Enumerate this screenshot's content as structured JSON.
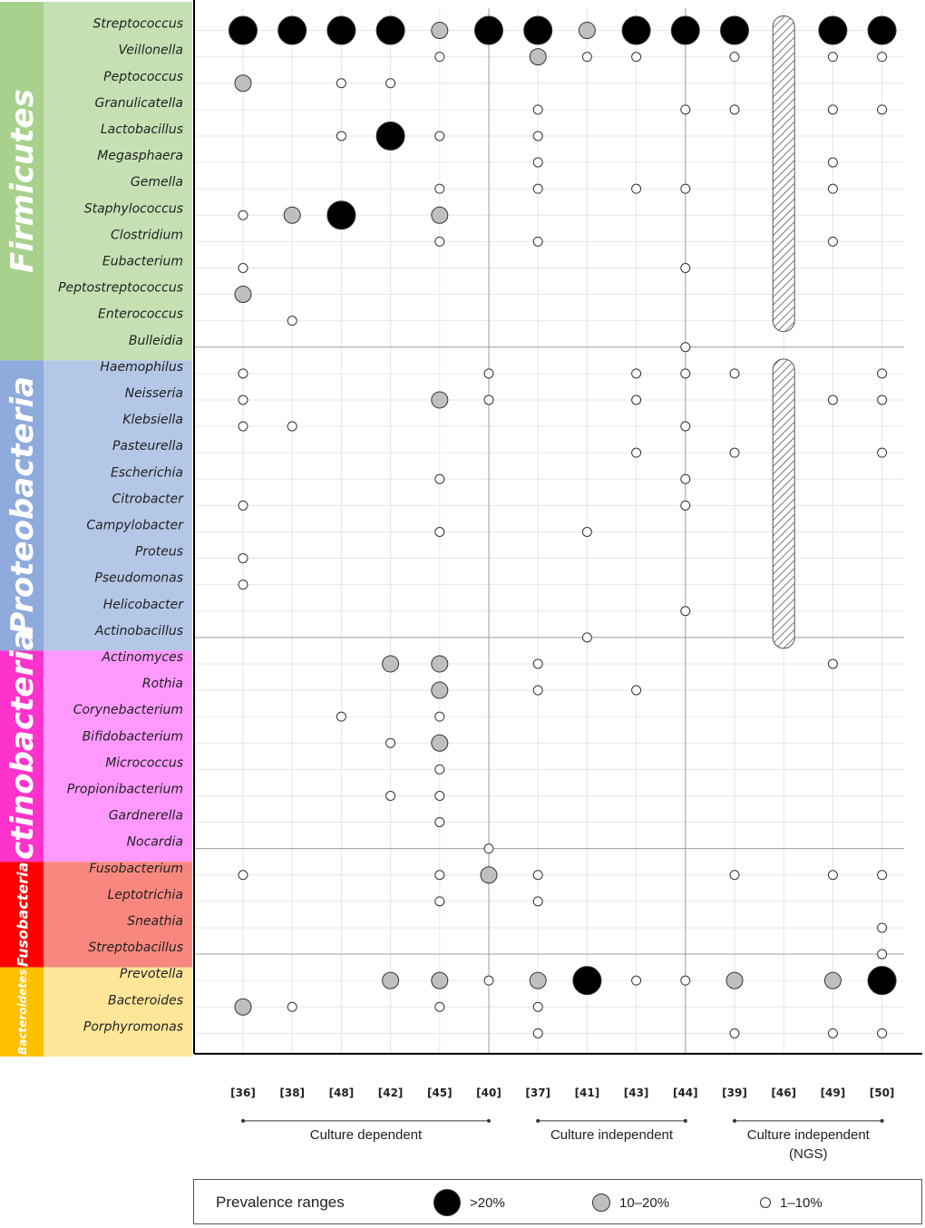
{
  "chart_data": {
    "type": "scatter",
    "title": "",
    "references": [
      "[36]",
      "[38]",
      "[48]",
      "[42]",
      "[45]",
      "[40]",
      "[37]",
      "[41]",
      "[43]",
      "[44]",
      "[39]",
      "[46]",
      "[49]",
      "[50]"
    ],
    "groups": [
      {
        "label": "Culture dependent",
        "from": 0,
        "to": 5
      },
      {
        "label": "Culture independent",
        "from": 6,
        "to": 9
      },
      {
        "label": "Culture independent\n(NGS)",
        "from": 10,
        "to": 13
      }
    ],
    "phyla": [
      {
        "name": "Firmicutes",
        "fill": "#c5e1b4",
        "band": "#a9d18e",
        "text_color": "#ffffff",
        "first": 0,
        "count": 13
      },
      {
        "name": "Proteobacteria",
        "fill": "#b4c7e7",
        "band": "#8faadc",
        "text_color": "#ffffff",
        "first": 13,
        "count": 11
      },
      {
        "name": "Actinobacteria",
        "fill": "#ff99ff",
        "band": "#ff33cc",
        "text_color": "#ffffff",
        "first": 24,
        "count": 8
      },
      {
        "name": "Fusobacteria",
        "fill": "#f8887f",
        "band": "#ff0000",
        "text_color": "#ffffff",
        "first": 32,
        "count": 4
      },
      {
        "name": "Bacteroidetes",
        "fill": "#ffe699",
        "band": "#ffc000",
        "text_color": "#ffffff",
        "first": 36,
        "count": 3
      }
    ],
    "genera": [
      "Streptococcus",
      "Veillonella",
      "Peptococcus",
      "Granulicatella",
      "Lactobacillus",
      "Megasphaera",
      "Gemella",
      "Staphylococcus",
      "Clostridium",
      "Eubacterium",
      "Peptostreptococcus",
      "Enterococcus",
      "Bulleidia",
      "Haemophilus",
      "Neisseria",
      "Klebsiella",
      "Pasteurella",
      "Escherichia",
      "Citrobacter",
      "Campylobacter",
      "Proteus",
      "Pseudomonas",
      "Helicobacter",
      "Actinobacillus",
      "Actinomyces",
      "Rothia",
      "Corynebacterium",
      "Bifidobacterium",
      "Micrococcus",
      "Propionibacterium",
      "Gardnerella",
      "Nocardia",
      "Fusobacterium",
      "Leptotrichia",
      "Sneathia",
      "Streptobacillus",
      "Prevotella",
      "Bacteroides",
      "Porphyromonas"
    ],
    "prevalence_levels": {
      "high": ">20%",
      "mid": "10–20%",
      "low": "1–10%"
    },
    "points": [
      {
        "genus": "Streptococcus",
        "ref": "[36]",
        "level": "high"
      },
      {
        "genus": "Streptococcus",
        "ref": "[38]",
        "level": "high"
      },
      {
        "genus": "Streptococcus",
        "ref": "[48]",
        "level": "high"
      },
      {
        "genus": "Streptococcus",
        "ref": "[42]",
        "level": "high"
      },
      {
        "genus": "Streptococcus",
        "ref": "[45]",
        "level": "mid"
      },
      {
        "genus": "Streptococcus",
        "ref": "[40]",
        "level": "high"
      },
      {
        "genus": "Streptococcus",
        "ref": "[37]",
        "level": "high"
      },
      {
        "genus": "Streptococcus",
        "ref": "[41]",
        "level": "mid"
      },
      {
        "genus": "Streptococcus",
        "ref": "[43]",
        "level": "high"
      },
      {
        "genus": "Streptococcus",
        "ref": "[44]",
        "level": "high"
      },
      {
        "genus": "Streptococcus",
        "ref": "[39]",
        "level": "high"
      },
      {
        "genus": "Streptococcus",
        "ref": "[49]",
        "level": "high"
      },
      {
        "genus": "Streptococcus",
        "ref": "[50]",
        "level": "high"
      },
      {
        "genus": "Veillonella",
        "ref": "[45]",
        "level": "low"
      },
      {
        "genus": "Veillonella",
        "ref": "[37]",
        "level": "mid"
      },
      {
        "genus": "Veillonella",
        "ref": "[41]",
        "level": "low"
      },
      {
        "genus": "Veillonella",
        "ref": "[43]",
        "level": "low"
      },
      {
        "genus": "Veillonella",
        "ref": "[39]",
        "level": "low"
      },
      {
        "genus": "Veillonella",
        "ref": "[49]",
        "level": "low"
      },
      {
        "genus": "Veillonella",
        "ref": "[50]",
        "level": "low"
      },
      {
        "genus": "Peptococcus",
        "ref": "[36]",
        "level": "mid"
      },
      {
        "genus": "Peptococcus",
        "ref": "[48]",
        "level": "low"
      },
      {
        "genus": "Peptococcus",
        "ref": "[42]",
        "level": "low"
      },
      {
        "genus": "Granulicatella",
        "ref": "[37]",
        "level": "low"
      },
      {
        "genus": "Granulicatella",
        "ref": "[44]",
        "level": "low"
      },
      {
        "genus": "Granulicatella",
        "ref": "[39]",
        "level": "low"
      },
      {
        "genus": "Granulicatella",
        "ref": "[49]",
        "level": "low"
      },
      {
        "genus": "Granulicatella",
        "ref": "[50]",
        "level": "low"
      },
      {
        "genus": "Lactobacillus",
        "ref": "[48]",
        "level": "low"
      },
      {
        "genus": "Lactobacillus",
        "ref": "[42]",
        "level": "high"
      },
      {
        "genus": "Lactobacillus",
        "ref": "[45]",
        "level": "low"
      },
      {
        "genus": "Lactobacillus",
        "ref": "[37]",
        "level": "low"
      },
      {
        "genus": "Megasphaera",
        "ref": "[37]",
        "level": "low"
      },
      {
        "genus": "Megasphaera",
        "ref": "[49]",
        "level": "low"
      },
      {
        "genus": "Gemella",
        "ref": "[45]",
        "level": "low"
      },
      {
        "genus": "Gemella",
        "ref": "[37]",
        "level": "low"
      },
      {
        "genus": "Gemella",
        "ref": "[43]",
        "level": "low"
      },
      {
        "genus": "Gemella",
        "ref": "[44]",
        "level": "low"
      },
      {
        "genus": "Gemella",
        "ref": "[49]",
        "level": "low"
      },
      {
        "genus": "Staphylococcus",
        "ref": "[36]",
        "level": "low"
      },
      {
        "genus": "Staphylococcus",
        "ref": "[38]",
        "level": "mid"
      },
      {
        "genus": "Staphylococcus",
        "ref": "[48]",
        "level": "high"
      },
      {
        "genus": "Staphylococcus",
        "ref": "[45]",
        "level": "mid"
      },
      {
        "genus": "Clostridium",
        "ref": "[45]",
        "level": "low"
      },
      {
        "genus": "Clostridium",
        "ref": "[37]",
        "level": "low"
      },
      {
        "genus": "Clostridium",
        "ref": "[49]",
        "level": "low"
      },
      {
        "genus": "Eubacterium",
        "ref": "[36]",
        "level": "low"
      },
      {
        "genus": "Eubacterium",
        "ref": "[44]",
        "level": "low"
      },
      {
        "genus": "Peptostreptococcus",
        "ref": "[36]",
        "level": "mid"
      },
      {
        "genus": "Enterococcus",
        "ref": "[38]",
        "level": "low"
      },
      {
        "genus": "Bulleidia",
        "ref": "[44]",
        "level": "low"
      },
      {
        "genus": "Haemophilus",
        "ref": "[36]",
        "level": "low"
      },
      {
        "genus": "Haemophilus",
        "ref": "[40]",
        "level": "low"
      },
      {
        "genus": "Haemophilus",
        "ref": "[43]",
        "level": "low"
      },
      {
        "genus": "Haemophilus",
        "ref": "[44]",
        "level": "low"
      },
      {
        "genus": "Haemophilus",
        "ref": "[39]",
        "level": "low"
      },
      {
        "genus": "Haemophilus",
        "ref": "[50]",
        "level": "low"
      },
      {
        "genus": "Neisseria",
        "ref": "[36]",
        "level": "low"
      },
      {
        "genus": "Neisseria",
        "ref": "[45]",
        "level": "mid"
      },
      {
        "genus": "Neisseria",
        "ref": "[40]",
        "level": "low"
      },
      {
        "genus": "Neisseria",
        "ref": "[43]",
        "level": "low"
      },
      {
        "genus": "Neisseria",
        "ref": "[49]",
        "level": "low"
      },
      {
        "genus": "Neisseria",
        "ref": "[50]",
        "level": "low"
      },
      {
        "genus": "Klebsiella",
        "ref": "[36]",
        "level": "low"
      },
      {
        "genus": "Klebsiella",
        "ref": "[38]",
        "level": "low"
      },
      {
        "genus": "Klebsiella",
        "ref": "[44]",
        "level": "low"
      },
      {
        "genus": "Pasteurella",
        "ref": "[43]",
        "level": "low"
      },
      {
        "genus": "Pasteurella",
        "ref": "[39]",
        "level": "low"
      },
      {
        "genus": "Pasteurella",
        "ref": "[50]",
        "level": "low"
      },
      {
        "genus": "Escherichia",
        "ref": "[45]",
        "level": "low"
      },
      {
        "genus": "Escherichia",
        "ref": "[44]",
        "level": "low"
      },
      {
        "genus": "Citrobacter",
        "ref": "[36]",
        "level": "low"
      },
      {
        "genus": "Citrobacter",
        "ref": "[44]",
        "level": "low"
      },
      {
        "genus": "Campylobacter",
        "ref": "[45]",
        "level": "low"
      },
      {
        "genus": "Campylobacter",
        "ref": "[41]",
        "level": "low"
      },
      {
        "genus": "Proteus",
        "ref": "[36]",
        "level": "low"
      },
      {
        "genus": "Pseudomonas",
        "ref": "[36]",
        "level": "low"
      },
      {
        "genus": "Helicobacter",
        "ref": "[44]",
        "level": "low"
      },
      {
        "genus": "Actinobacillus",
        "ref": "[41]",
        "level": "low"
      },
      {
        "genus": "Actinomyces",
        "ref": "[42]",
        "level": "mid"
      },
      {
        "genus": "Actinomyces",
        "ref": "[45]",
        "level": "mid"
      },
      {
        "genus": "Actinomyces",
        "ref": "[37]",
        "level": "low"
      },
      {
        "genus": "Actinomyces",
        "ref": "[49]",
        "level": "low"
      },
      {
        "genus": "Rothia",
        "ref": "[45]",
        "level": "mid"
      },
      {
        "genus": "Rothia",
        "ref": "[37]",
        "level": "low"
      },
      {
        "genus": "Rothia",
        "ref": "[43]",
        "level": "low"
      },
      {
        "genus": "Corynebacterium",
        "ref": "[48]",
        "level": "low"
      },
      {
        "genus": "Corynebacterium",
        "ref": "[45]",
        "level": "low"
      },
      {
        "genus": "Bifidobacterium",
        "ref": "[42]",
        "level": "low"
      },
      {
        "genus": "Bifidobacterium",
        "ref": "[45]",
        "level": "mid"
      },
      {
        "genus": "Micrococcus",
        "ref": "[45]",
        "level": "low"
      },
      {
        "genus": "Propionibacterium",
        "ref": "[42]",
        "level": "low"
      },
      {
        "genus": "Propionibacterium",
        "ref": "[45]",
        "level": "low"
      },
      {
        "genus": "Gardnerella",
        "ref": "[45]",
        "level": "low"
      },
      {
        "genus": "Nocardia",
        "ref": "[40]",
        "level": "low"
      },
      {
        "genus": "Fusobacterium",
        "ref": "[36]",
        "level": "low"
      },
      {
        "genus": "Fusobacterium",
        "ref": "[45]",
        "level": "low"
      },
      {
        "genus": "Fusobacterium",
        "ref": "[40]",
        "level": "mid"
      },
      {
        "genus": "Fusobacterium",
        "ref": "[37]",
        "level": "low"
      },
      {
        "genus": "Fusobacterium",
        "ref": "[39]",
        "level": "low"
      },
      {
        "genus": "Fusobacterium",
        "ref": "[49]",
        "level": "low"
      },
      {
        "genus": "Fusobacterium",
        "ref": "[50]",
        "level": "low"
      },
      {
        "genus": "Leptotrichia",
        "ref": "[45]",
        "level": "low"
      },
      {
        "genus": "Leptotrichia",
        "ref": "[37]",
        "level": "low"
      },
      {
        "genus": "Sneathia",
        "ref": "[50]",
        "level": "low"
      },
      {
        "genus": "Streptobacillus",
        "ref": "[50]",
        "level": "low"
      },
      {
        "genus": "Prevotella",
        "ref": "[42]",
        "level": "mid"
      },
      {
        "genus": "Prevotella",
        "ref": "[45]",
        "level": "mid"
      },
      {
        "genus": "Prevotella",
        "ref": "[40]",
        "level": "low"
      },
      {
        "genus": "Prevotella",
        "ref": "[37]",
        "level": "mid"
      },
      {
        "genus": "Prevotella",
        "ref": "[41]",
        "level": "high"
      },
      {
        "genus": "Prevotella",
        "ref": "[43]",
        "level": "low"
      },
      {
        "genus": "Prevotella",
        "ref": "[44]",
        "level": "low"
      },
      {
        "genus": "Prevotella",
        "ref": "[39]",
        "level": "mid"
      },
      {
        "genus": "Prevotella",
        "ref": "[49]",
        "level": "mid"
      },
      {
        "genus": "Prevotella",
        "ref": "[50]",
        "level": "high"
      },
      {
        "genus": "Bacteroides",
        "ref": "[36]",
        "level": "mid"
      },
      {
        "genus": "Bacteroides",
        "ref": "[38]",
        "level": "low"
      },
      {
        "genus": "Bacteroides",
        "ref": "[45]",
        "level": "low"
      },
      {
        "genus": "Bacteroides",
        "ref": "[37]",
        "level": "low"
      },
      {
        "genus": "Porphyromonas",
        "ref": "[37]",
        "level": "low"
      },
      {
        "genus": "Porphyromonas",
        "ref": "[39]",
        "level": "low"
      },
      {
        "genus": "Porphyromonas",
        "ref": "[49]",
        "level": "low"
      },
      {
        "genus": "Porphyromonas",
        "ref": "[50]",
        "level": "low"
      }
    ],
    "hatched_ranges": [
      {
        "ref": "[46]",
        "from": "Streptococcus",
        "to": "Enterococcus"
      },
      {
        "ref": "[46]",
        "from": "Haemophilus",
        "to": "Actinobacillus"
      }
    ],
    "colors": {
      "high": "#000000",
      "mid": "#bfbfbf",
      "low": "#ffffff",
      "grid": "#e6e6e6"
    },
    "legend": {
      "title": "Prevalence ranges",
      "items": [
        ">20%",
        "10–20%",
        "1–10%"
      ]
    },
    "grid": true
  }
}
